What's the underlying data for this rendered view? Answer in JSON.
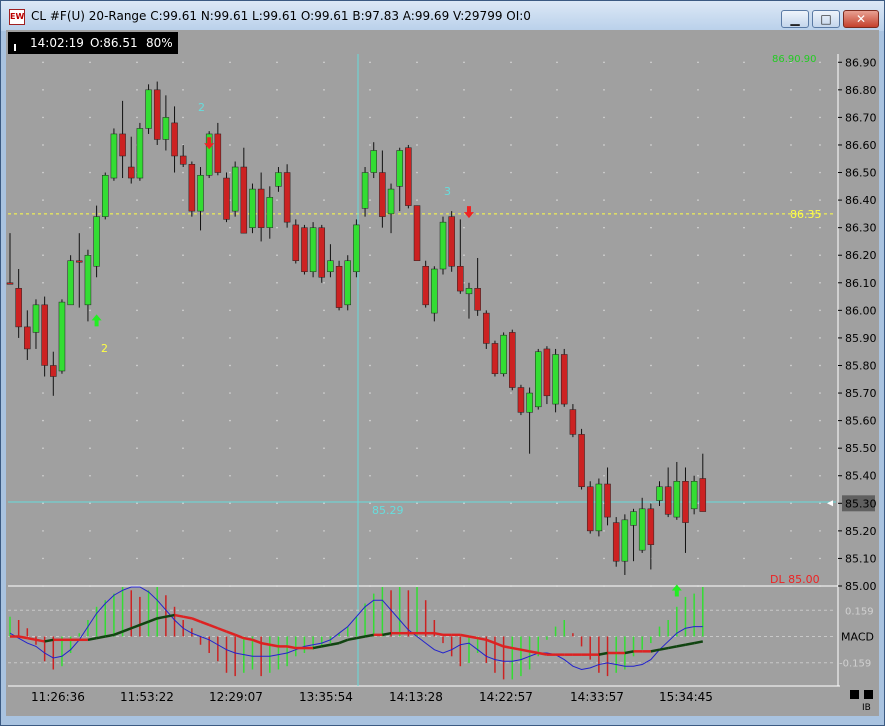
{
  "window": {
    "title": "CL #F(U) 20-Range C:99.61 N:99.61 L:99.61 O:99.61 B:97.83 A:99.69 V:29799 OI:0",
    "icon_text": "EW",
    "controls": {
      "minimize": "▁",
      "maximize": "□",
      "close": "✕"
    }
  },
  "info_bar": {
    "time": "14:02:19",
    "open": "O:86.51",
    "percent": "80%"
  },
  "colors": {
    "background": "#a0a0a0",
    "up_bar": "#33dd33",
    "down_bar": "#cc2222",
    "crosshair": "#66dddd",
    "level_line": "#ffff44",
    "macd_fast": "#2222cc",
    "macd_signal_red": "#dd2222",
    "macd_signal_dark": "#114411"
  },
  "price_axis": {
    "ticks": [
      "86.90",
      "86.80",
      "86.70",
      "86.60",
      "86.50",
      "86.40",
      "86.30",
      "86.20",
      "86.10",
      "86.00",
      "85.90",
      "85.80",
      "85.70",
      "85.60",
      "85.50",
      "85.40",
      "85.30",
      "85.20",
      "85.10",
      "85.00"
    ],
    "current_price_label": "85.30"
  },
  "time_axis": {
    "ticks": [
      "11:26:36",
      "11:53:22",
      "12:29:07",
      "13:35:54",
      "14:13:28",
      "14:22:57",
      "14:33:57",
      "15:34:45"
    ]
  },
  "annotations": {
    "level_label": "86.35",
    "crosshair_price": "85.29",
    "dl_label": "DL 85.00",
    "top_label": "86.90.90",
    "wave_labels": [
      "2",
      "2",
      "3"
    ]
  },
  "macd_panel": {
    "label": "MACD",
    "upper_value": "0.159",
    "lower_value": "-0.159"
  },
  "footer": {
    "ib_label": "IB"
  },
  "chart_data": {
    "type": "candlestick",
    "title": "CL #F(U) 20-Range",
    "price_range": [
      85.0,
      86.93
    ],
    "level_price": 86.35,
    "crosshair_price": 85.29,
    "candles": [
      {
        "o": 86.1,
        "c": 86.1,
        "h": 86.28,
        "l": 86.1,
        "up": false
      },
      {
        "o": 86.08,
        "c": 85.94,
        "h": 86.15,
        "l": 85.9,
        "up": false
      },
      {
        "o": 85.94,
        "c": 85.86,
        "h": 86.0,
        "l": 85.82,
        "up": false
      },
      {
        "o": 85.92,
        "c": 86.02,
        "h": 86.04,
        "l": 85.86,
        "up": true
      },
      {
        "o": 86.02,
        "c": 85.8,
        "h": 86.05,
        "l": 85.76,
        "up": false
      },
      {
        "o": 85.8,
        "c": 85.76,
        "h": 85.85,
        "l": 85.69,
        "up": false
      },
      {
        "o": 85.78,
        "c": 86.03,
        "h": 86.04,
        "l": 85.77,
        "up": true
      },
      {
        "o": 86.02,
        "c": 86.18,
        "h": 86.2,
        "l": 86.02,
        "up": true
      },
      {
        "o": 86.18,
        "c": 86.18,
        "h": 86.28,
        "l": 86.01,
        "up": false
      },
      {
        "o": 86.02,
        "c": 86.2,
        "h": 86.22,
        "l": 85.96,
        "up": true
      },
      {
        "o": 86.16,
        "c": 86.34,
        "h": 86.38,
        "l": 86.12,
        "up": true
      },
      {
        "o": 86.34,
        "c": 86.49,
        "h": 86.5,
        "l": 86.33,
        "up": true
      },
      {
        "o": 86.48,
        "c": 86.64,
        "h": 86.66,
        "l": 86.47,
        "up": true
      },
      {
        "o": 86.64,
        "c": 86.56,
        "h": 86.76,
        "l": 86.48,
        "up": false
      },
      {
        "o": 86.52,
        "c": 86.48,
        "h": 86.63,
        "l": 86.46,
        "up": false
      },
      {
        "o": 86.48,
        "c": 86.66,
        "h": 86.68,
        "l": 86.47,
        "up": true
      },
      {
        "o": 86.66,
        "c": 86.8,
        "h": 86.82,
        "l": 86.64,
        "up": true
      },
      {
        "o": 86.8,
        "c": 86.62,
        "h": 86.83,
        "l": 86.6,
        "up": false
      },
      {
        "o": 86.62,
        "c": 86.7,
        "h": 86.78,
        "l": 86.58,
        "up": true
      },
      {
        "o": 86.68,
        "c": 86.56,
        "h": 86.74,
        "l": 86.5,
        "up": false
      },
      {
        "o": 86.56,
        "c": 86.53,
        "h": 86.6,
        "l": 86.52,
        "up": false
      },
      {
        "o": 86.53,
        "c": 86.36,
        "h": 86.54,
        "l": 86.34,
        "up": false
      },
      {
        "o": 86.36,
        "c": 86.49,
        "h": 86.52,
        "l": 86.29,
        "up": true
      },
      {
        "o": 86.49,
        "c": 86.64,
        "h": 86.65,
        "l": 86.48,
        "up": true
      },
      {
        "o": 86.64,
        "c": 86.5,
        "h": 86.68,
        "l": 86.49,
        "up": false
      },
      {
        "o": 86.48,
        "c": 86.33,
        "h": 86.5,
        "l": 86.32,
        "up": false
      },
      {
        "o": 86.36,
        "c": 86.52,
        "h": 86.54,
        "l": 86.34,
        "up": true
      },
      {
        "o": 86.52,
        "c": 86.28,
        "h": 86.59,
        "l": 86.28,
        "up": false
      },
      {
        "o": 86.3,
        "c": 86.44,
        "h": 86.46,
        "l": 86.28,
        "up": true
      },
      {
        "o": 86.44,
        "c": 86.3,
        "h": 86.5,
        "l": 86.25,
        "up": false
      },
      {
        "o": 86.3,
        "c": 86.41,
        "h": 86.45,
        "l": 86.26,
        "up": true
      },
      {
        "o": 86.45,
        "c": 86.5,
        "h": 86.52,
        "l": 86.43,
        "up": true
      },
      {
        "o": 86.5,
        "c": 86.32,
        "h": 86.53,
        "l": 86.3,
        "up": false
      },
      {
        "o": 86.31,
        "c": 86.18,
        "h": 86.33,
        "l": 86.17,
        "up": false
      },
      {
        "o": 86.3,
        "c": 86.14,
        "h": 86.31,
        "l": 86.13,
        "up": false
      },
      {
        "o": 86.14,
        "c": 86.3,
        "h": 86.32,
        "l": 86.12,
        "up": true
      },
      {
        "o": 86.3,
        "c": 86.12,
        "h": 86.31,
        "l": 86.1,
        "up": false
      },
      {
        "o": 86.14,
        "c": 86.18,
        "h": 86.24,
        "l": 86.12,
        "up": true
      },
      {
        "o": 86.16,
        "c": 86.01,
        "h": 86.18,
        "l": 86.0,
        "up": false
      },
      {
        "o": 86.02,
        "c": 86.18,
        "h": 86.2,
        "l": 86.0,
        "up": true
      },
      {
        "o": 86.14,
        "c": 86.31,
        "h": 86.33,
        "l": 86.12,
        "up": true
      },
      {
        "o": 86.37,
        "c": 86.5,
        "h": 86.52,
        "l": 86.34,
        "up": true
      },
      {
        "o": 86.5,
        "c": 86.58,
        "h": 86.61,
        "l": 86.48,
        "up": true
      },
      {
        "o": 86.5,
        "c": 86.34,
        "h": 86.58,
        "l": 86.3,
        "up": false
      },
      {
        "o": 86.35,
        "c": 86.44,
        "h": 86.46,
        "l": 86.28,
        "up": true
      },
      {
        "o": 86.45,
        "c": 86.58,
        "h": 86.59,
        "l": 86.36,
        "up": true
      },
      {
        "o": 86.59,
        "c": 86.38,
        "h": 86.6,
        "l": 86.37,
        "up": false
      },
      {
        "o": 86.38,
        "c": 86.18,
        "h": 86.38,
        "l": 86.18,
        "up": false
      },
      {
        "o": 86.16,
        "c": 86.02,
        "h": 86.18,
        "l": 86.01,
        "up": false
      },
      {
        "o": 85.99,
        "c": 86.15,
        "h": 86.16,
        "l": 85.96,
        "up": true
      },
      {
        "o": 86.15,
        "c": 86.32,
        "h": 86.34,
        "l": 86.13,
        "up": true
      },
      {
        "o": 86.34,
        "c": 86.16,
        "h": 86.36,
        "l": 86.14,
        "up": false
      },
      {
        "o": 86.16,
        "c": 86.07,
        "h": 86.33,
        "l": 86.06,
        "up": false
      },
      {
        "o": 86.06,
        "c": 86.08,
        "h": 86.1,
        "l": 85.97,
        "up": true
      },
      {
        "o": 86.08,
        "c": 86.0,
        "h": 86.19,
        "l": 85.98,
        "up": false
      },
      {
        "o": 85.99,
        "c": 85.88,
        "h": 86.0,
        "l": 85.86,
        "up": false
      },
      {
        "o": 85.88,
        "c": 85.77,
        "h": 85.89,
        "l": 85.76,
        "up": false
      },
      {
        "o": 85.77,
        "c": 85.91,
        "h": 85.92,
        "l": 85.76,
        "up": true
      },
      {
        "o": 85.92,
        "c": 85.72,
        "h": 85.93,
        "l": 85.71,
        "up": false
      },
      {
        "o": 85.72,
        "c": 85.63,
        "h": 85.73,
        "l": 85.62,
        "up": false
      },
      {
        "o": 85.63,
        "c": 85.7,
        "h": 85.72,
        "l": 85.48,
        "up": true
      },
      {
        "o": 85.65,
        "c": 85.85,
        "h": 85.86,
        "l": 85.64,
        "up": true
      },
      {
        "o": 85.86,
        "c": 85.69,
        "h": 85.87,
        "l": 85.66,
        "up": false
      },
      {
        "o": 85.66,
        "c": 85.84,
        "h": 85.86,
        "l": 85.63,
        "up": true
      },
      {
        "o": 85.84,
        "c": 85.66,
        "h": 85.86,
        "l": 85.65,
        "up": false
      },
      {
        "o": 85.64,
        "c": 85.55,
        "h": 85.66,
        "l": 85.54,
        "up": false
      },
      {
        "o": 85.55,
        "c": 85.36,
        "h": 85.57,
        "l": 85.35,
        "up": false
      },
      {
        "o": 85.36,
        "c": 85.2,
        "h": 85.38,
        "l": 85.19,
        "up": false
      },
      {
        "o": 85.2,
        "c": 85.37,
        "h": 85.39,
        "l": 85.18,
        "up": true
      },
      {
        "o": 85.37,
        "c": 85.25,
        "h": 85.43,
        "l": 85.22,
        "up": false
      },
      {
        "o": 85.23,
        "c": 85.09,
        "h": 85.25,
        "l": 85.07,
        "up": false
      },
      {
        "o": 85.09,
        "c": 85.24,
        "h": 85.26,
        "l": 85.04,
        "up": true
      },
      {
        "o": 85.22,
        "c": 85.27,
        "h": 85.28,
        "l": 85.09,
        "up": true
      },
      {
        "o": 85.13,
        "c": 85.28,
        "h": 85.32,
        "l": 85.12,
        "up": true
      },
      {
        "o": 85.28,
        "c": 85.15,
        "h": 85.3,
        "l": 85.06,
        "up": false
      },
      {
        "o": 85.31,
        "c": 85.36,
        "h": 85.38,
        "l": 85.29,
        "up": true
      },
      {
        "o": 85.36,
        "c": 85.26,
        "h": 85.43,
        "l": 85.25,
        "up": false
      },
      {
        "o": 85.25,
        "c": 85.38,
        "h": 85.45,
        "l": 85.24,
        "up": true
      },
      {
        "o": 85.38,
        "c": 85.23,
        "h": 85.43,
        "l": 85.12,
        "up": false
      },
      {
        "o": 85.28,
        "c": 85.38,
        "h": 85.4,
        "l": 85.26,
        "up": true
      },
      {
        "o": 85.39,
        "c": 85.27,
        "h": 85.48,
        "l": 85.27,
        "up": false
      }
    ],
    "signals": [
      {
        "type": "buy",
        "bar": 10,
        "price": 85.96
      },
      {
        "type": "sell",
        "bar": 23,
        "price": 86.61
      },
      {
        "type": "sell",
        "bar": 53,
        "price": 86.36
      },
      {
        "type": "buy",
        "bar": 77,
        "price": 84.98
      }
    ],
    "macd_range": [
      -0.3,
      0.3
    ],
    "macd_hist": [
      0.12,
      0.1,
      0.05,
      -0.05,
      -0.15,
      -0.2,
      -0.18,
      -0.1,
      0.02,
      0.1,
      0.18,
      0.22,
      0.26,
      0.3,
      0.28,
      0.24,
      0.28,
      0.3,
      0.25,
      0.18,
      0.1,
      0.05,
      -0.05,
      -0.1,
      -0.15,
      -0.22,
      -0.24,
      -0.22,
      -0.2,
      -0.24,
      -0.22,
      -0.2,
      -0.18,
      -0.12,
      -0.1,
      -0.08,
      -0.06,
      -0.04,
      0.02,
      0.06,
      0.12,
      0.2,
      0.26,
      0.3,
      0.28,
      0.3,
      0.28,
      0.3,
      0.22,
      0.1,
      -0.04,
      -0.12,
      -0.18,
      -0.16,
      -0.1,
      -0.16,
      -0.22,
      -0.26,
      -0.26,
      -0.24,
      -0.2,
      -0.12,
      -0.02,
      0.06,
      0.1,
      0.02,
      -0.06,
      -0.14,
      -0.22,
      -0.24,
      -0.22,
      -0.2,
      -0.12,
      -0.08,
      -0.04,
      0.06,
      0.1,
      0.18,
      0.24,
      0.26,
      0.3
    ],
    "macd_line": [
      0.02,
      -0.01,
      -0.04,
      -0.06,
      -0.1,
      -0.13,
      -0.12,
      -0.08,
      -0.02,
      0.06,
      0.14,
      0.2,
      0.25,
      0.28,
      0.3,
      0.3,
      0.27,
      0.22,
      0.16,
      0.1,
      0.05,
      0.02,
      0.0,
      -0.02,
      -0.05,
      -0.08,
      -0.1,
      -0.11,
      -0.12,
      -0.12,
      -0.12,
      -0.11,
      -0.1,
      -0.08,
      -0.06,
      -0.05,
      -0.04,
      -0.02,
      0.02,
      0.06,
      0.12,
      0.18,
      0.22,
      0.22,
      0.16,
      0.1,
      0.04,
      0.0,
      -0.04,
      -0.08,
      -0.1,
      -0.08,
      -0.05,
      -0.04,
      -0.08,
      -0.12,
      -0.14,
      -0.15,
      -0.15,
      -0.14,
      -0.12,
      -0.1,
      -0.1,
      -0.11,
      -0.14,
      -0.18,
      -0.2,
      -0.19,
      -0.17,
      -0.16,
      -0.17,
      -0.18,
      -0.18,
      -0.17,
      -0.14,
      -0.08,
      -0.03,
      0.02,
      0.05,
      0.06,
      0.06
    ],
    "signal_line": [
      0.0,
      0.0,
      -0.01,
      -0.02,
      -0.03,
      -0.02,
      -0.02,
      -0.02,
      -0.02,
      -0.02,
      -0.01,
      0.0,
      0.01,
      0.03,
      0.05,
      0.07,
      0.09,
      0.11,
      0.12,
      0.13,
      0.12,
      0.11,
      0.09,
      0.07,
      0.05,
      0.03,
      0.01,
      -0.01,
      -0.02,
      -0.04,
      -0.05,
      -0.06,
      -0.06,
      -0.07,
      -0.07,
      -0.07,
      -0.06,
      -0.05,
      -0.04,
      -0.02,
      -0.01,
      0.0,
      0.01,
      0.01,
      0.02,
      0.02,
      0.02,
      0.02,
      0.02,
      0.02,
      0.01,
      0.01,
      0.01,
      0.0,
      -0.01,
      -0.02,
      -0.04,
      -0.06,
      -0.07,
      -0.08,
      -0.09,
      -0.1,
      -0.11,
      -0.11,
      -0.11,
      -0.11,
      -0.11,
      -0.11,
      -0.11,
      -0.1,
      -0.1,
      -0.1,
      -0.09,
      -0.09,
      -0.09,
      -0.08,
      -0.07,
      -0.06,
      -0.05,
      -0.04,
      -0.03
    ]
  }
}
